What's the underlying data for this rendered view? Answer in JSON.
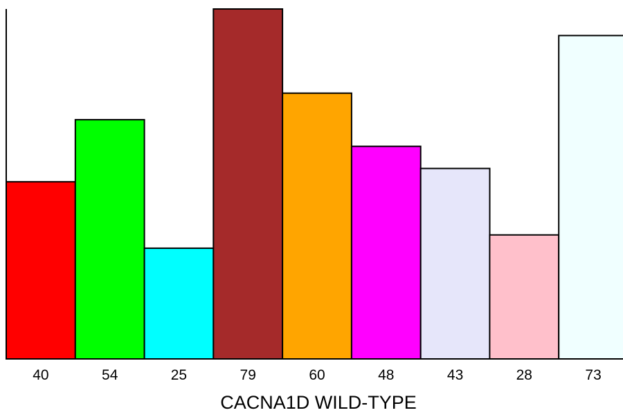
{
  "chart_data": {
    "type": "bar",
    "categories": [
      "40",
      "54",
      "25",
      "79",
      "60",
      "48",
      "43",
      "28",
      "73"
    ],
    "values": [
      40,
      54,
      25,
      79,
      60,
      48,
      43,
      28,
      73
    ],
    "colors": [
      "#ff0000",
      "#00ff00",
      "#00ffff",
      "#a52a2a",
      "#ffa500",
      "#ff00ff",
      "#e6e6fa",
      "#ffc0cb",
      "#f0ffff"
    ],
    "title": "",
    "xlabel": "CACNA1D WILD-TYPE",
    "ylabel": "",
    "ylim": [
      0,
      79
    ],
    "grid": false,
    "legend": "none"
  }
}
